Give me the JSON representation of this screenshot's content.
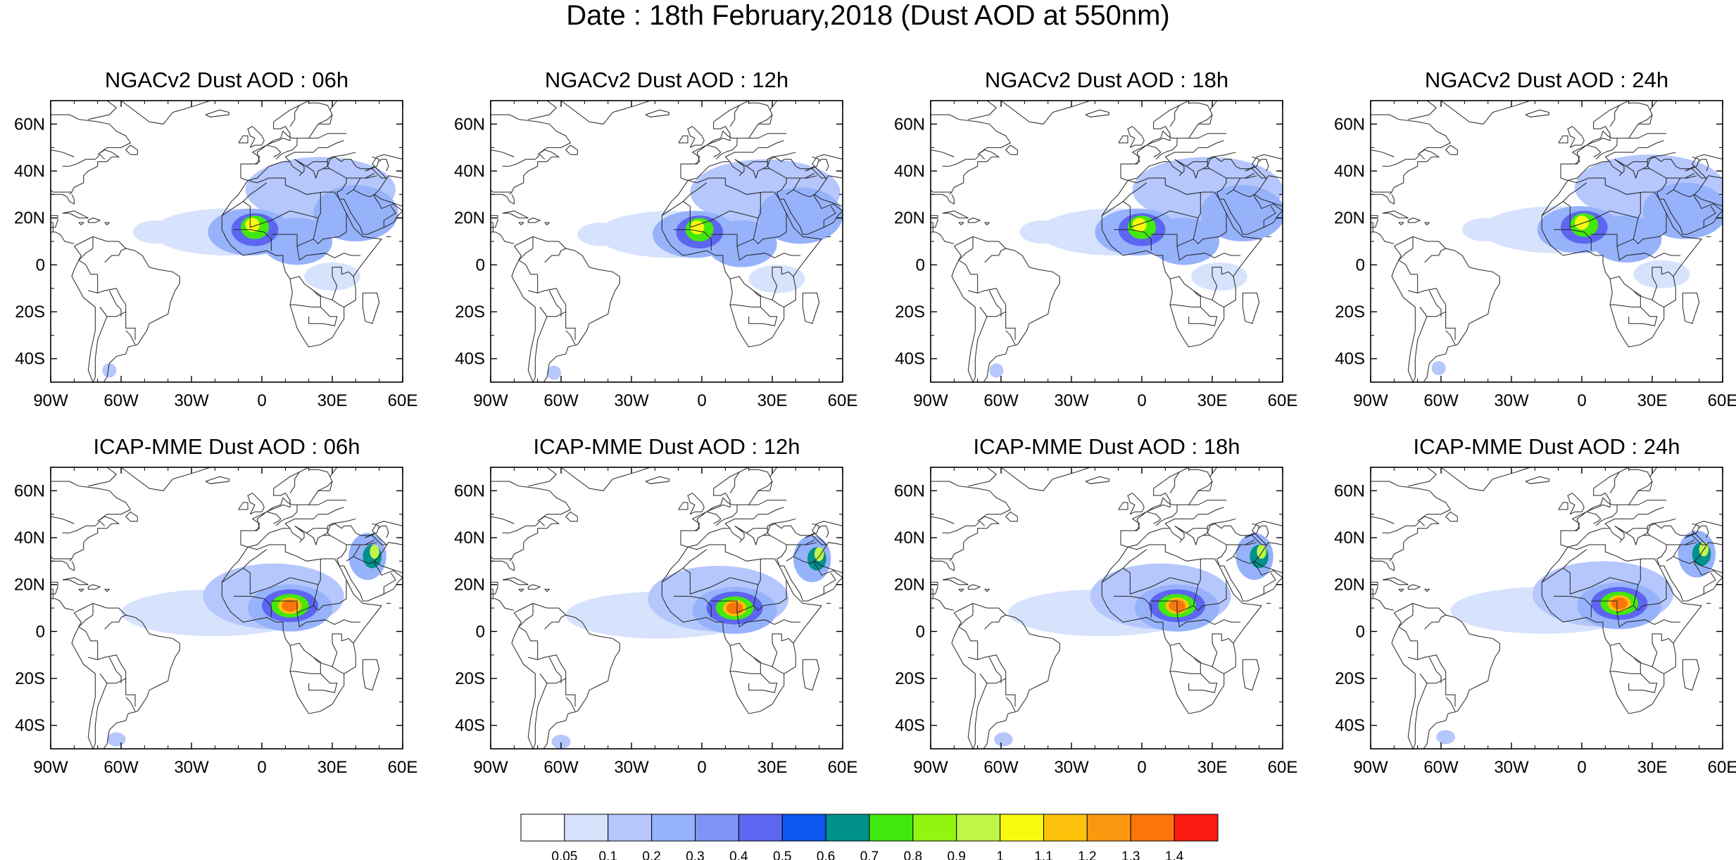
{
  "figure": {
    "title": "Date : 18th February,2018 (Dust AOD at 550nm)"
  },
  "axes": {
    "lat_ticks": [
      "60N",
      "40N",
      "20N",
      "0",
      "20S",
      "40S"
    ],
    "lon_ticks": [
      "90W",
      "60W",
      "30W",
      "0",
      "30E",
      "60E"
    ],
    "lat_values": [
      60,
      40,
      20,
      0,
      -20,
      -40
    ],
    "lon_values": [
      -90,
      -60,
      -30,
      0,
      30,
      60
    ],
    "lon_range": [
      -90,
      60
    ],
    "lat_range": [
      -50,
      70
    ]
  },
  "panels": [
    {
      "title": "NGACv2 Dust AOD : 06h",
      "model": "NGACv2",
      "hour": 6
    },
    {
      "title": "NGACv2 Dust AOD : 12h",
      "model": "NGACv2",
      "hour": 12
    },
    {
      "title": "NGACv2 Dust AOD : 18h",
      "model": "NGACv2",
      "hour": 18
    },
    {
      "title": "NGACv2 Dust AOD : 24h",
      "model": "NGACv2",
      "hour": 24
    },
    {
      "title": "ICAP-MME Dust AOD : 06h",
      "model": "ICAP-MME",
      "hour": 6
    },
    {
      "title": "ICAP-MME Dust AOD : 12h",
      "model": "ICAP-MME",
      "hour": 12
    },
    {
      "title": "ICAP-MME Dust AOD : 18h",
      "model": "ICAP-MME",
      "hour": 18
    },
    {
      "title": "ICAP-MME Dust AOD : 24h",
      "model": "ICAP-MME",
      "hour": 24
    }
  ],
  "colorbar": {
    "levels": [
      "0.05",
      "0.1",
      "0.2",
      "0.3",
      "0.4",
      "0.5",
      "0.6",
      "0.7",
      "0.8",
      "0.9",
      "1",
      "1.1",
      "1.2",
      "1.3",
      "1.4"
    ],
    "colors": [
      "#ffffff",
      "#d7e3fd",
      "#b5c7fc",
      "#96b2fb",
      "#7e95f6",
      "#5d66f0",
      "#0b57f0",
      "#00918c",
      "#43e90d",
      "#90f510",
      "#c1f648",
      "#f9f90f",
      "#fcc10a",
      "#fc980f",
      "#fb750c",
      "#fb1a12"
    ]
  }
}
